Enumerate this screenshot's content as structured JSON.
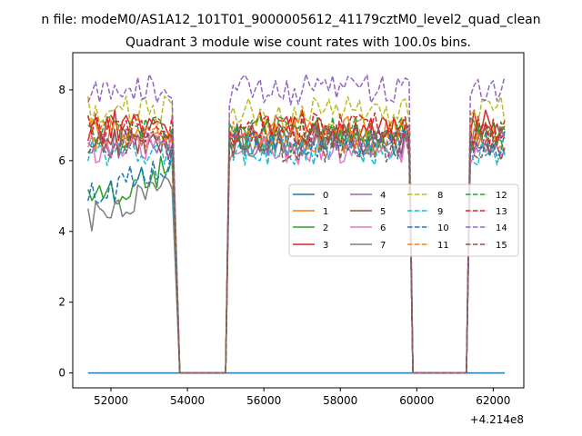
{
  "suptitle": "n file: modeM0/AS1A12_101T01_9000005612_41179cztM0_level2_quad_clean",
  "chart_data": {
    "type": "line",
    "title": "Quadrant 3 module wise count rates with 100.0s bins.",
    "xlabel": "",
    "ylabel": "",
    "x_offset_label": "+4.214e8",
    "xlim": [
      51000,
      62800
    ],
    "ylim": [
      -0.42,
      9.05
    ],
    "x_ticks": [
      52000,
      54000,
      56000,
      58000,
      60000,
      62000
    ],
    "y_ticks": [
      0,
      2,
      4,
      6,
      8
    ],
    "x_tick_labels": [
      "52000",
      "54000",
      "56000",
      "58000",
      "60000",
      "62000"
    ],
    "y_tick_labels": [
      "0",
      "2",
      "4",
      "6",
      "8"
    ],
    "x_range": [
      51400,
      62300
    ],
    "bin_width": 100,
    "grid": false,
    "legend_placement": "center-right",
    "legend_ncol": 4,
    "segments": [
      {
        "start": 51400,
        "end": 53600
      },
      {
        "start": 55100,
        "end": 59800
      },
      {
        "start": 61400,
        "end": 62300
      }
    ],
    "gaps": [
      {
        "drop_from": 53600,
        "zero_start": 53800,
        "zero_end": 55000
      },
      {
        "drop_from": 59800,
        "zero_start": 59900,
        "zero_end": 61300
      }
    ],
    "series": [
      {
        "name": "0",
        "color": "#1f77b4",
        "dash": "solid",
        "level": 0.0,
        "zero": true
      },
      {
        "name": "1",
        "color": "#ff7f0e",
        "dash": "solid",
        "level": 6.8
      },
      {
        "name": "2",
        "color": "#2ca02c",
        "dash": "solid",
        "level": 6.6,
        "seg1_level": 4.9
      },
      {
        "name": "3",
        "color": "#d62728",
        "dash": "solid",
        "level": 7.0
      },
      {
        "name": "4",
        "color": "#9467bd",
        "dash": "solid",
        "level": 6.5
      },
      {
        "name": "5",
        "color": "#8c564b",
        "dash": "solid",
        "level": 6.6
      },
      {
        "name": "6",
        "color": "#e377c2",
        "dash": "solid",
        "level": 6.3
      },
      {
        "name": "7",
        "color": "#7f7f7f",
        "dash": "solid",
        "level": 6.5,
        "seg1_level": 4.4
      },
      {
        "name": "8",
        "color": "#bcbd22",
        "dash": "dashed",
        "level": 7.4
      },
      {
        "name": "9",
        "color": "#17becf",
        "dash": "dashed",
        "level": 6.3
      },
      {
        "name": "10",
        "color": "#1f77b4",
        "dash": "dashed",
        "level": 6.5,
        "seg1_level": 5.0
      },
      {
        "name": "11",
        "color": "#ff7f0e",
        "dash": "dashed",
        "level": 6.7
      },
      {
        "name": "12",
        "color": "#2ca02c",
        "dash": "dashed",
        "level": 6.8
      },
      {
        "name": "13",
        "color": "#d62728",
        "dash": "dashed",
        "level": 6.9
      },
      {
        "name": "14",
        "color": "#9467bd",
        "dash": "dashed",
        "level": 8.0
      },
      {
        "name": "15",
        "color": "#8c564b",
        "dash": "dashed",
        "level": 6.4
      }
    ]
  }
}
